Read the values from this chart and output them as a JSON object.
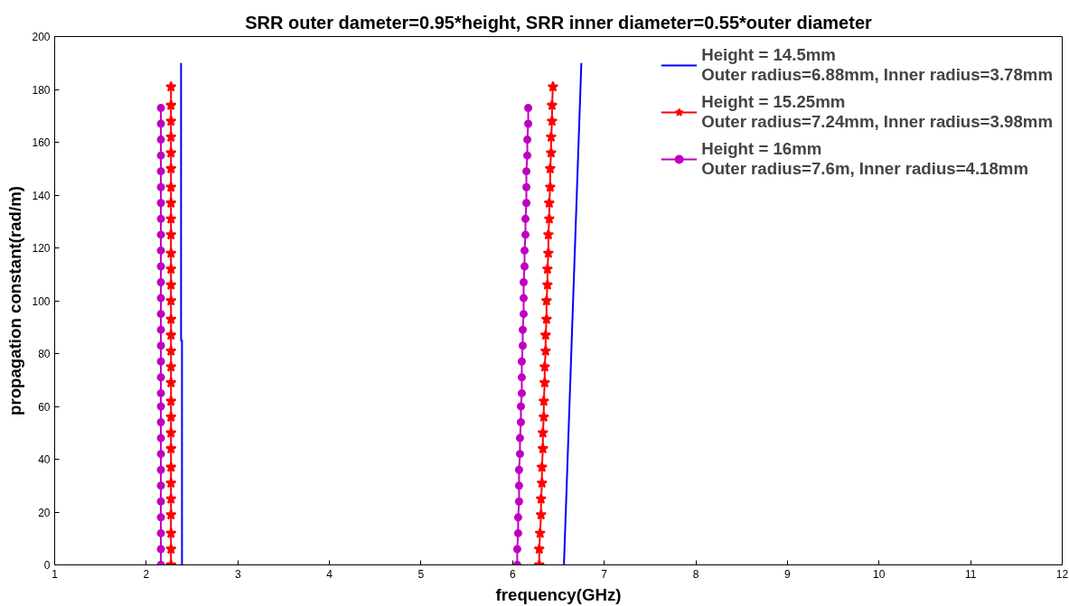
{
  "chart_data": {
    "type": "line",
    "title": "SRR outer dameter=0.95*height, SRR inner diameter=0.55*outer diameter",
    "xlabel": "frequency(GHz)",
    "ylabel": "propagation constant(rad/m)",
    "xlim": [
      1,
      12
    ],
    "ylim": [
      0,
      200
    ],
    "xticks": [
      1,
      2,
      3,
      4,
      5,
      6,
      7,
      8,
      9,
      10,
      11,
      12
    ],
    "yticks": [
      0,
      20,
      40,
      60,
      80,
      100,
      120,
      140,
      160,
      180,
      200
    ],
    "grid": false,
    "legend": "top right",
    "series": [
      {
        "name": "Height = 14.5mm\nOuter radius=6.88mm, Inner radius=3.78mm",
        "color": "#0000ff",
        "marker": "none",
        "x": [
          2.39,
          2.39,
          2.38,
          2.38,
          null,
          6.56,
          6.75
        ],
        "values": [
          0,
          85,
          85,
          190,
          null,
          0,
          190
        ]
      },
      {
        "name": "Height = 15.25mm\nOuter radius=7.24mm, Inner radius=3.98mm",
        "color": "#ff0000",
        "marker": "star",
        "x": [
          2.27,
          2.27,
          2.27,
          2.27,
          2.27,
          2.27,
          2.27,
          2.27,
          2.27,
          2.27,
          2.27,
          2.27,
          2.27,
          2.27,
          2.27,
          2.27,
          2.27,
          2.27,
          2.27,
          2.27,
          2.27,
          2.27,
          2.27,
          2.27,
          2.27,
          2.27,
          2.27,
          2.27,
          2.27,
          2.27,
          null,
          6.29,
          6.29,
          6.3,
          6.31,
          6.31,
          6.32,
          6.32,
          6.33,
          6.33,
          6.34,
          6.34,
          6.35,
          6.35,
          6.36,
          6.36,
          6.37,
          6.37,
          6.38,
          6.38,
          6.39,
          6.39,
          6.4,
          6.4,
          6.41,
          6.41,
          6.42,
          6.42,
          6.43,
          6.43,
          6.44
        ],
        "values": [
          0,
          6,
          12,
          19,
          25,
          31,
          37,
          44,
          50,
          56,
          62,
          69,
          75,
          81,
          87,
          93,
          100,
          106,
          112,
          118,
          125,
          131,
          137,
          143,
          150,
          156,
          162,
          168,
          174,
          181,
          null,
          0,
          6,
          12,
          19,
          25,
          31,
          37,
          44,
          50,
          56,
          62,
          69,
          75,
          81,
          87,
          93,
          100,
          106,
          112,
          118,
          125,
          131,
          137,
          143,
          150,
          156,
          162,
          168,
          174,
          181
        ]
      },
      {
        "name": "Height = 16mm\nOuter radius=7.6m, Inner radius=4.18mm",
        "color": "#bf00bf",
        "marker": "circle",
        "x": [
          2.16,
          2.16,
          2.16,
          2.16,
          2.16,
          2.16,
          2.16,
          2.16,
          2.16,
          2.16,
          2.16,
          2.16,
          2.16,
          2.16,
          2.16,
          2.16,
          2.16,
          2.16,
          2.16,
          2.16,
          2.16,
          2.16,
          2.16,
          2.16,
          2.16,
          2.16,
          2.16,
          2.16,
          2.16,
          2.16,
          null,
          6.05,
          6.05,
          6.06,
          6.06,
          6.07,
          6.07,
          6.07,
          6.08,
          6.08,
          6.09,
          6.09,
          6.1,
          6.1,
          6.1,
          6.11,
          6.11,
          6.12,
          6.12,
          6.12,
          6.13,
          6.13,
          6.14,
          6.14,
          6.15,
          6.15,
          6.15,
          6.16,
          6.16,
          6.17,
          6.17
        ],
        "values": [
          0,
          6,
          12,
          18,
          24,
          30,
          36,
          42,
          48,
          54,
          60,
          65,
          71,
          77,
          83,
          89,
          95,
          101,
          107,
          113,
          119,
          125,
          131,
          137,
          143,
          149,
          155,
          161,
          167,
          173,
          null,
          0,
          6,
          12,
          18,
          24,
          30,
          36,
          42,
          48,
          54,
          60,
          65,
          71,
          77,
          83,
          89,
          95,
          101,
          107,
          113,
          119,
          125,
          131,
          137,
          143,
          149,
          155,
          161,
          167,
          173
        ]
      }
    ]
  }
}
